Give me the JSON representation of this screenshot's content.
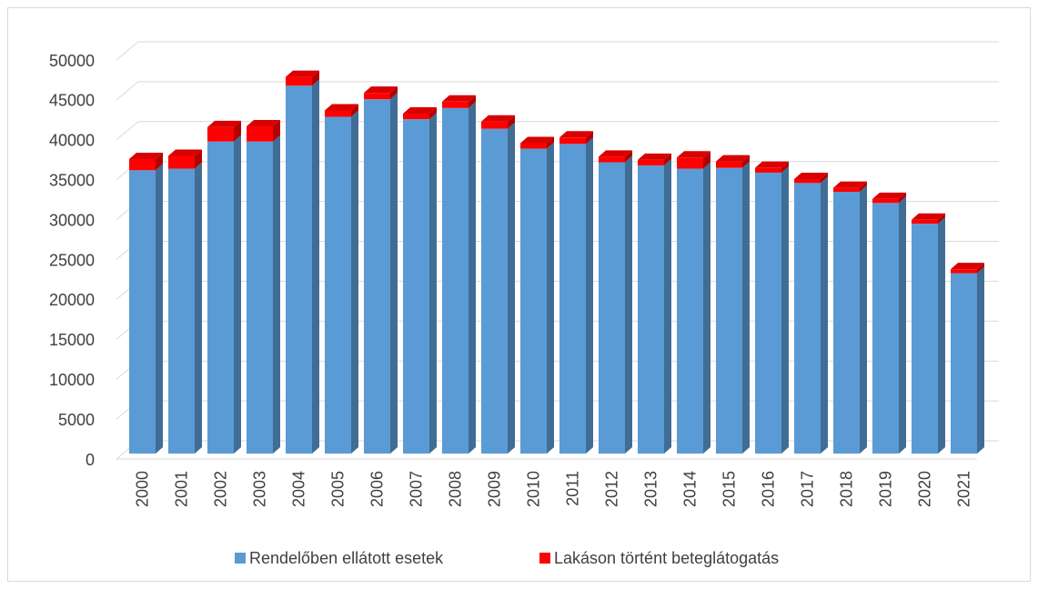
{
  "chart_data": {
    "type": "bar3d_stacked",
    "categories": [
      "2000",
      "2001",
      "2002",
      "2003",
      "2004",
      "2005",
      "2006",
      "2007",
      "2008",
      "2009",
      "2010",
      "2011",
      "2012",
      "2013",
      "2014",
      "2015",
      "2016",
      "2017",
      "2018",
      "2019",
      "2020",
      "2021"
    ],
    "series": [
      {
        "name": "Rendelőben ellátott esetek",
        "color": "#5b9bd5",
        "values": [
          35500,
          35700,
          39100,
          39100,
          46100,
          42200,
          44400,
          41900,
          43300,
          40700,
          38200,
          38800,
          36500,
          36100,
          35700,
          35800,
          35200,
          33900,
          32800,
          31400,
          28800,
          22600
        ]
      },
      {
        "name": "Lakáson történt beteglátogatás",
        "color": "#ff0000",
        "values": [
          1400,
          1600,
          1800,
          1900,
          1100,
          800,
          800,
          700,
          800,
          900,
          700,
          800,
          700,
          700,
          1400,
          800,
          600,
          500,
          500,
          500,
          500,
          500
        ]
      }
    ],
    "ylim": [
      0,
      50000
    ],
    "yticks": [
      0,
      5000,
      10000,
      15000,
      20000,
      25000,
      30000,
      35000,
      40000,
      45000,
      50000
    ],
    "grid": true,
    "legend": "bottom"
  }
}
